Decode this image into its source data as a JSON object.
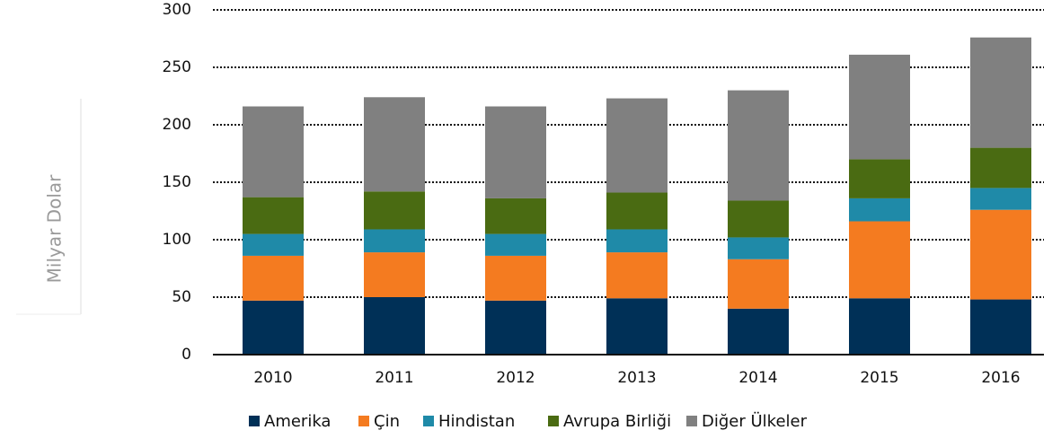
{
  "chart_data": {
    "type": "stacked_bar",
    "y_label": "Milyar Dolar",
    "categories": [
      "2010",
      "2011",
      "2012",
      "2013",
      "2014",
      "2015",
      "2016"
    ],
    "series": [
      {
        "name": "Amerika",
        "color": "#003057",
        "values": [
          47,
          50,
          47,
          49,
          40,
          49,
          48
        ]
      },
      {
        "name": "Çin",
        "color": "#f47b20",
        "values": [
          39,
          39,
          39,
          40,
          43,
          67,
          78
        ]
      },
      {
        "name": "Hindistan",
        "color": "#1f8aa8",
        "values": [
          19,
          20,
          19,
          20,
          19,
          20,
          19
        ]
      },
      {
        "name": "Avrupa Birliği",
        "color": "#4a6b12",
        "values": [
          32,
          33,
          31,
          32,
          32,
          34,
          35
        ]
      },
      {
        "name": "Diğer Ülkeler",
        "color": "#808080",
        "values": [
          79,
          82,
          80,
          82,
          96,
          91,
          96
        ]
      }
    ],
    "ylim": [
      0,
      300
    ],
    "yticks": [
      0,
      50,
      100,
      150,
      200,
      250,
      300
    ],
    "grid": true
  }
}
